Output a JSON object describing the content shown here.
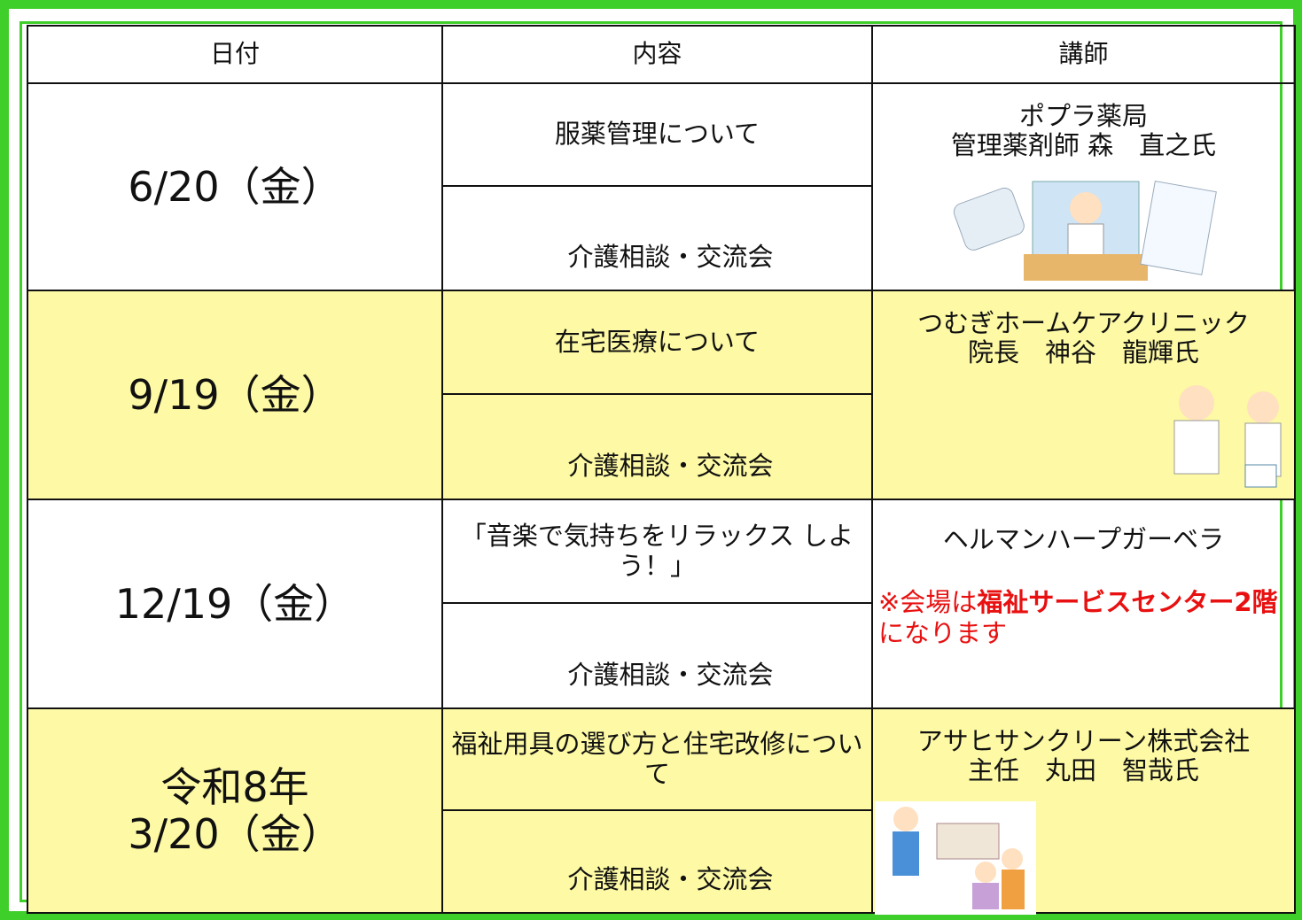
{
  "table": {
    "headers": [
      "日付",
      "内容",
      "講師"
    ],
    "rows": [
      {
        "date": [
          "6/20（金）"
        ],
        "topics": [
          "服薬管理について",
          "介護相談・交流会"
        ],
        "lecturer": [
          "ポプラ薬局",
          "管理薬剤師 森　直之氏"
        ]
      },
      {
        "date": [
          "9/19（金）"
        ],
        "topics": [
          "在宅医療について",
          "介護相談・交流会"
        ],
        "lecturer": [
          "つむぎホームケアクリニック",
          "院長　神谷　龍輝氏"
        ]
      },
      {
        "date": [
          "12/19（金）"
        ],
        "topics": [
          "「音楽で気持ちをリラックス しよう！」",
          "介護相談・交流会"
        ],
        "lecturer": [
          "ヘルマンハープガーベラ"
        ],
        "note": [
          "※会場は",
          "福祉サービスセンター2階",
          "になります"
        ]
      },
      {
        "date": [
          "令和8年",
          "3/20（金）"
        ],
        "topics": [
          "福祉用具の選び方と住宅改修について",
          "介護相談・交流会"
        ],
        "lecturer": [
          "アサヒサンクリーン株式会社",
          "主任　丸田　智哉氏"
        ]
      }
    ]
  }
}
